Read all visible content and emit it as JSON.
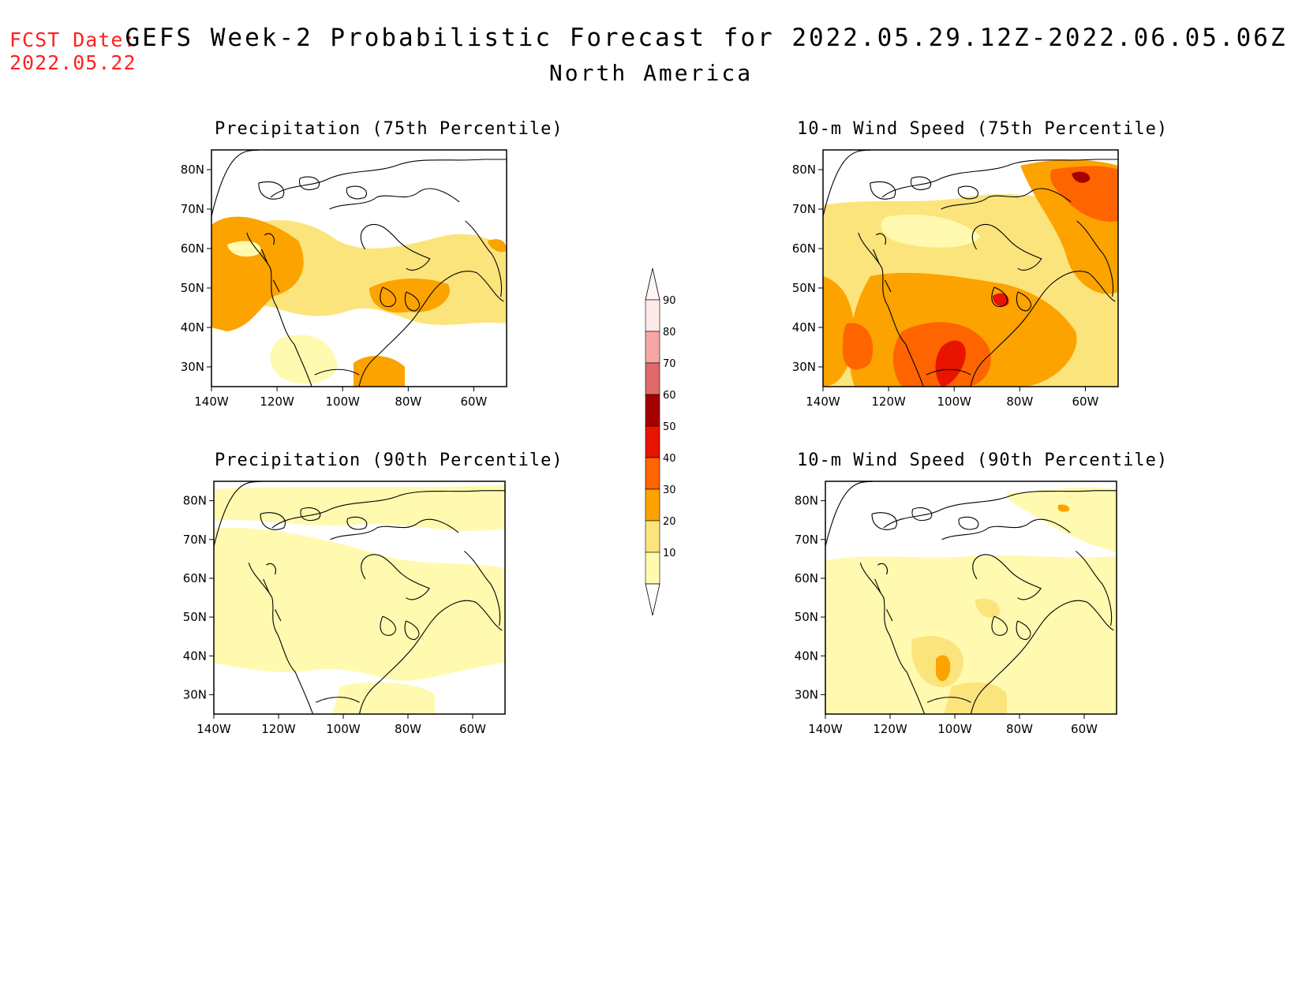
{
  "header": {
    "fcst_label": "FCST Date:",
    "fcst_date": "2022.05.22",
    "title": "GEFS Week-2 Probabilistic Forecast for 2022.05.29.12Z-2022.06.05.06Z",
    "subtitle": "North America"
  },
  "axes": {
    "lat_ticks": [
      "80N",
      "70N",
      "60N",
      "50N",
      "40N",
      "30N"
    ],
    "lon_ticks": [
      "140W",
      "120W",
      "100W",
      "80W",
      "60W"
    ],
    "lat_range": [
      25,
      85
    ],
    "lon_range": [
      -140,
      -50
    ]
  },
  "panels": [
    {
      "id": "precip75",
      "title": "Precipitation (75th Percentile)",
      "variant": "p75"
    },
    {
      "id": "wind75",
      "title": "10-m Wind Speed (75th Percentile)",
      "variant": "w75"
    },
    {
      "id": "precip90",
      "title": "Precipitation (90th Percentile)",
      "variant": "p90"
    },
    {
      "id": "wind90",
      "title": "10-m Wind Speed (90th Percentile)",
      "variant": "w90"
    }
  ],
  "colorbar": {
    "levels": [
      "90",
      "80",
      "70",
      "60",
      "50",
      "40",
      "30",
      "20",
      "10"
    ],
    "colors": {
      "b10": "#fffab0",
      "b20": "#fce47c",
      "b30": "#fca300",
      "b40": "#fe6400",
      "b50": "#e81300",
      "b60": "#a50000",
      "b70": "#e06969",
      "b80": "#f6a5a5",
      "b90": "#ffe8e8"
    }
  },
  "colors": {
    "fcst_date": "#ff2020",
    "coast": "#000000"
  }
}
